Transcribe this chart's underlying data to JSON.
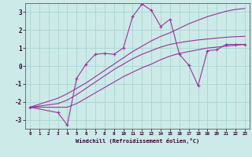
{
  "xlabel": "Windchill (Refroidissement éolien,°C)",
  "ylabel": "",
  "bg_color": "#cceae8",
  "grid_color": "#aad4d2",
  "line_color": "#993399",
  "xlim": [
    -0.5,
    23.5
  ],
  "ylim": [
    -3.5,
    3.5
  ],
  "xticks": [
    0,
    1,
    2,
    3,
    4,
    5,
    6,
    7,
    8,
    9,
    10,
    11,
    12,
    13,
    14,
    15,
    16,
    17,
    18,
    19,
    20,
    21,
    22,
    23
  ],
  "yticks": [
    -3,
    -2,
    -1,
    0,
    1,
    2,
    3
  ],
  "series": [
    {
      "x": [
        0,
        3,
        4,
        5,
        6,
        7,
        8,
        9,
        10,
        11,
        12,
        13,
        14,
        15,
        16,
        17,
        18,
        19,
        20,
        21,
        22,
        23
      ],
      "y": [
        -2.3,
        -2.3,
        -2.3,
        -2.1,
        -1.8,
        -1.5,
        -1.2,
        -0.9,
        -0.6,
        -0.35,
        -0.1,
        0.1,
        0.35,
        0.55,
        0.7,
        0.8,
        0.9,
        1.0,
        1.05,
        1.1,
        1.15,
        1.2
      ],
      "has_markers": false
    },
    {
      "x": [
        0,
        3,
        4,
        5,
        6,
        7,
        8,
        9,
        10,
        11,
        12,
        13,
        14,
        15,
        16,
        17,
        18,
        19,
        20,
        21,
        22,
        23
      ],
      "y": [
        -2.3,
        -2.1,
        -1.9,
        -1.6,
        -1.25,
        -0.9,
        -0.55,
        -0.2,
        0.1,
        0.4,
        0.65,
        0.85,
        1.05,
        1.2,
        1.3,
        1.38,
        1.45,
        1.5,
        1.55,
        1.6,
        1.63,
        1.65
      ],
      "has_markers": false
    },
    {
      "x": [
        0,
        3,
        4,
        5,
        6,
        7,
        8,
        9,
        10,
        11,
        12,
        13,
        14,
        15,
        16,
        17,
        18,
        19,
        20,
        21,
        22,
        23
      ],
      "y": [
        -2.3,
        -2.6,
        -3.3,
        -0.7,
        0.1,
        0.65,
        0.7,
        0.65,
        1.0,
        2.75,
        3.45,
        3.1,
        2.2,
        2.6,
        0.65,
        0.05,
        -1.1,
        0.85,
        0.9,
        1.2,
        1.2,
        1.2
      ],
      "has_markers": true
    },
    {
      "x": [
        0,
        3,
        4,
        5,
        6,
        7,
        8,
        9,
        10,
        11,
        12,
        13,
        14,
        15,
        16,
        17,
        18,
        19,
        20,
        21,
        22,
        23
      ],
      "y": [
        -2.3,
        -1.8,
        -1.55,
        -1.25,
        -0.95,
        -0.6,
        -0.25,
        0.1,
        0.45,
        0.8,
        1.1,
        1.4,
        1.65,
        1.85,
        2.1,
        2.35,
        2.55,
        2.75,
        2.9,
        3.05,
        3.15,
        3.2
      ],
      "has_markers": false
    }
  ]
}
